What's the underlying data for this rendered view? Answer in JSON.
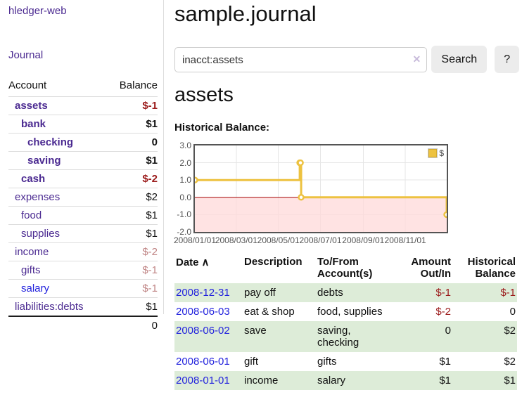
{
  "app": {
    "title": "hledger-web",
    "nav": {
      "journal": "Journal"
    }
  },
  "sidebar": {
    "headers": {
      "account": "Account",
      "balance": "Balance"
    },
    "accounts": [
      {
        "name": "assets",
        "level": 0,
        "bold": true,
        "balance": "$-1"
      },
      {
        "name": "bank",
        "level": 1,
        "bold": true,
        "balance": "$1"
      },
      {
        "name": "checking",
        "level": 2,
        "bold": true,
        "balance": "0"
      },
      {
        "name": "saving",
        "level": 2,
        "bold": true,
        "balance": "$1"
      },
      {
        "name": "cash",
        "level": 1,
        "bold": true,
        "balance": "$-2"
      },
      {
        "name": "expenses",
        "level": 0,
        "bold": false,
        "balance": "$2"
      },
      {
        "name": "food",
        "level": 1,
        "bold": false,
        "balance": "$1"
      },
      {
        "name": "supplies",
        "level": 1,
        "bold": false,
        "balance": "$1"
      },
      {
        "name": "income",
        "level": 0,
        "bold": false,
        "balance": "$-2"
      },
      {
        "name": "gifts",
        "level": 1,
        "bold": false,
        "balance": "$-1"
      },
      {
        "name": "salary",
        "level": 1,
        "bold": false,
        "unvisited": true,
        "balance": "$-1"
      },
      {
        "name": "liabilities:debts",
        "level": 0,
        "bold": false,
        "balance": "$1"
      }
    ],
    "total": "0"
  },
  "main": {
    "title": "sample.journal",
    "search": {
      "value": "inacct:assets",
      "clear_icon": "✕",
      "search_button": "Search",
      "help_button": "?"
    },
    "account_heading": "assets",
    "chart_heading": "Historical Balance:",
    "register": {
      "headers": {
        "date": "Date",
        "sort_icon": "∧",
        "description": "Description",
        "accounts": "To/From\nAccount(s)",
        "amount": "Amount\nOut/In",
        "balance": "Historical\nBalance"
      },
      "rows": [
        {
          "date": "2008-12-31",
          "description": "pay off",
          "accounts": "debts",
          "amount": "$-1",
          "balance": "$-1"
        },
        {
          "date": "2008-06-03",
          "description": "eat & shop",
          "accounts": "food, supplies",
          "amount": "$-2",
          "balance": "0"
        },
        {
          "date": "2008-06-02",
          "description": "save",
          "accounts": "saving,\nchecking",
          "amount": "0",
          "balance": "$2"
        },
        {
          "date": "2008-06-01",
          "description": "gift",
          "accounts": "gifts",
          "amount": "$1",
          "balance": "$2"
        },
        {
          "date": "2008-01-01",
          "description": "income",
          "accounts": "salary",
          "amount": "$1",
          "balance": "$1"
        }
      ]
    }
  },
  "chart_data": {
    "type": "line",
    "step": true,
    "title": "Historical Balance",
    "legend": [
      {
        "label": "$",
        "color": "#EDC240"
      }
    ],
    "legend_position": "top-right",
    "x_domain": [
      "2008-01-01",
      "2008-12-31"
    ],
    "ylim": [
      -2,
      3
    ],
    "y_ticks": [
      "3.0",
      "2.0",
      "1.0",
      "0.0",
      "-1.0",
      "-2.0"
    ],
    "x_ticks": [
      "2008/01/01",
      "2008/03/01",
      "2008/05/01",
      "2008/07/01",
      "2008/09/01",
      "2008/11/01"
    ],
    "series": [
      {
        "name": "$",
        "color": "#EDC240",
        "points": [
          [
            "2008-01-01",
            1
          ],
          [
            "2008-06-01",
            2
          ],
          [
            "2008-06-02",
            2
          ],
          [
            "2008-06-03",
            0
          ],
          [
            "2008-12-31",
            -1
          ]
        ]
      }
    ],
    "grid": true,
    "grid_color": "#e6e6e6",
    "border_color": "#545454",
    "negative_region_fill": "#ffd9d9",
    "zero_line_color": "#a40000"
  },
  "colors": {
    "link_purple": "#4b2a91",
    "link_blue": "#2222dd",
    "negative_strong": "#9b1b1b",
    "negative_soft": "#c08585",
    "row_green": "#ddecd8",
    "accent_yellow": "#EDC240"
  }
}
